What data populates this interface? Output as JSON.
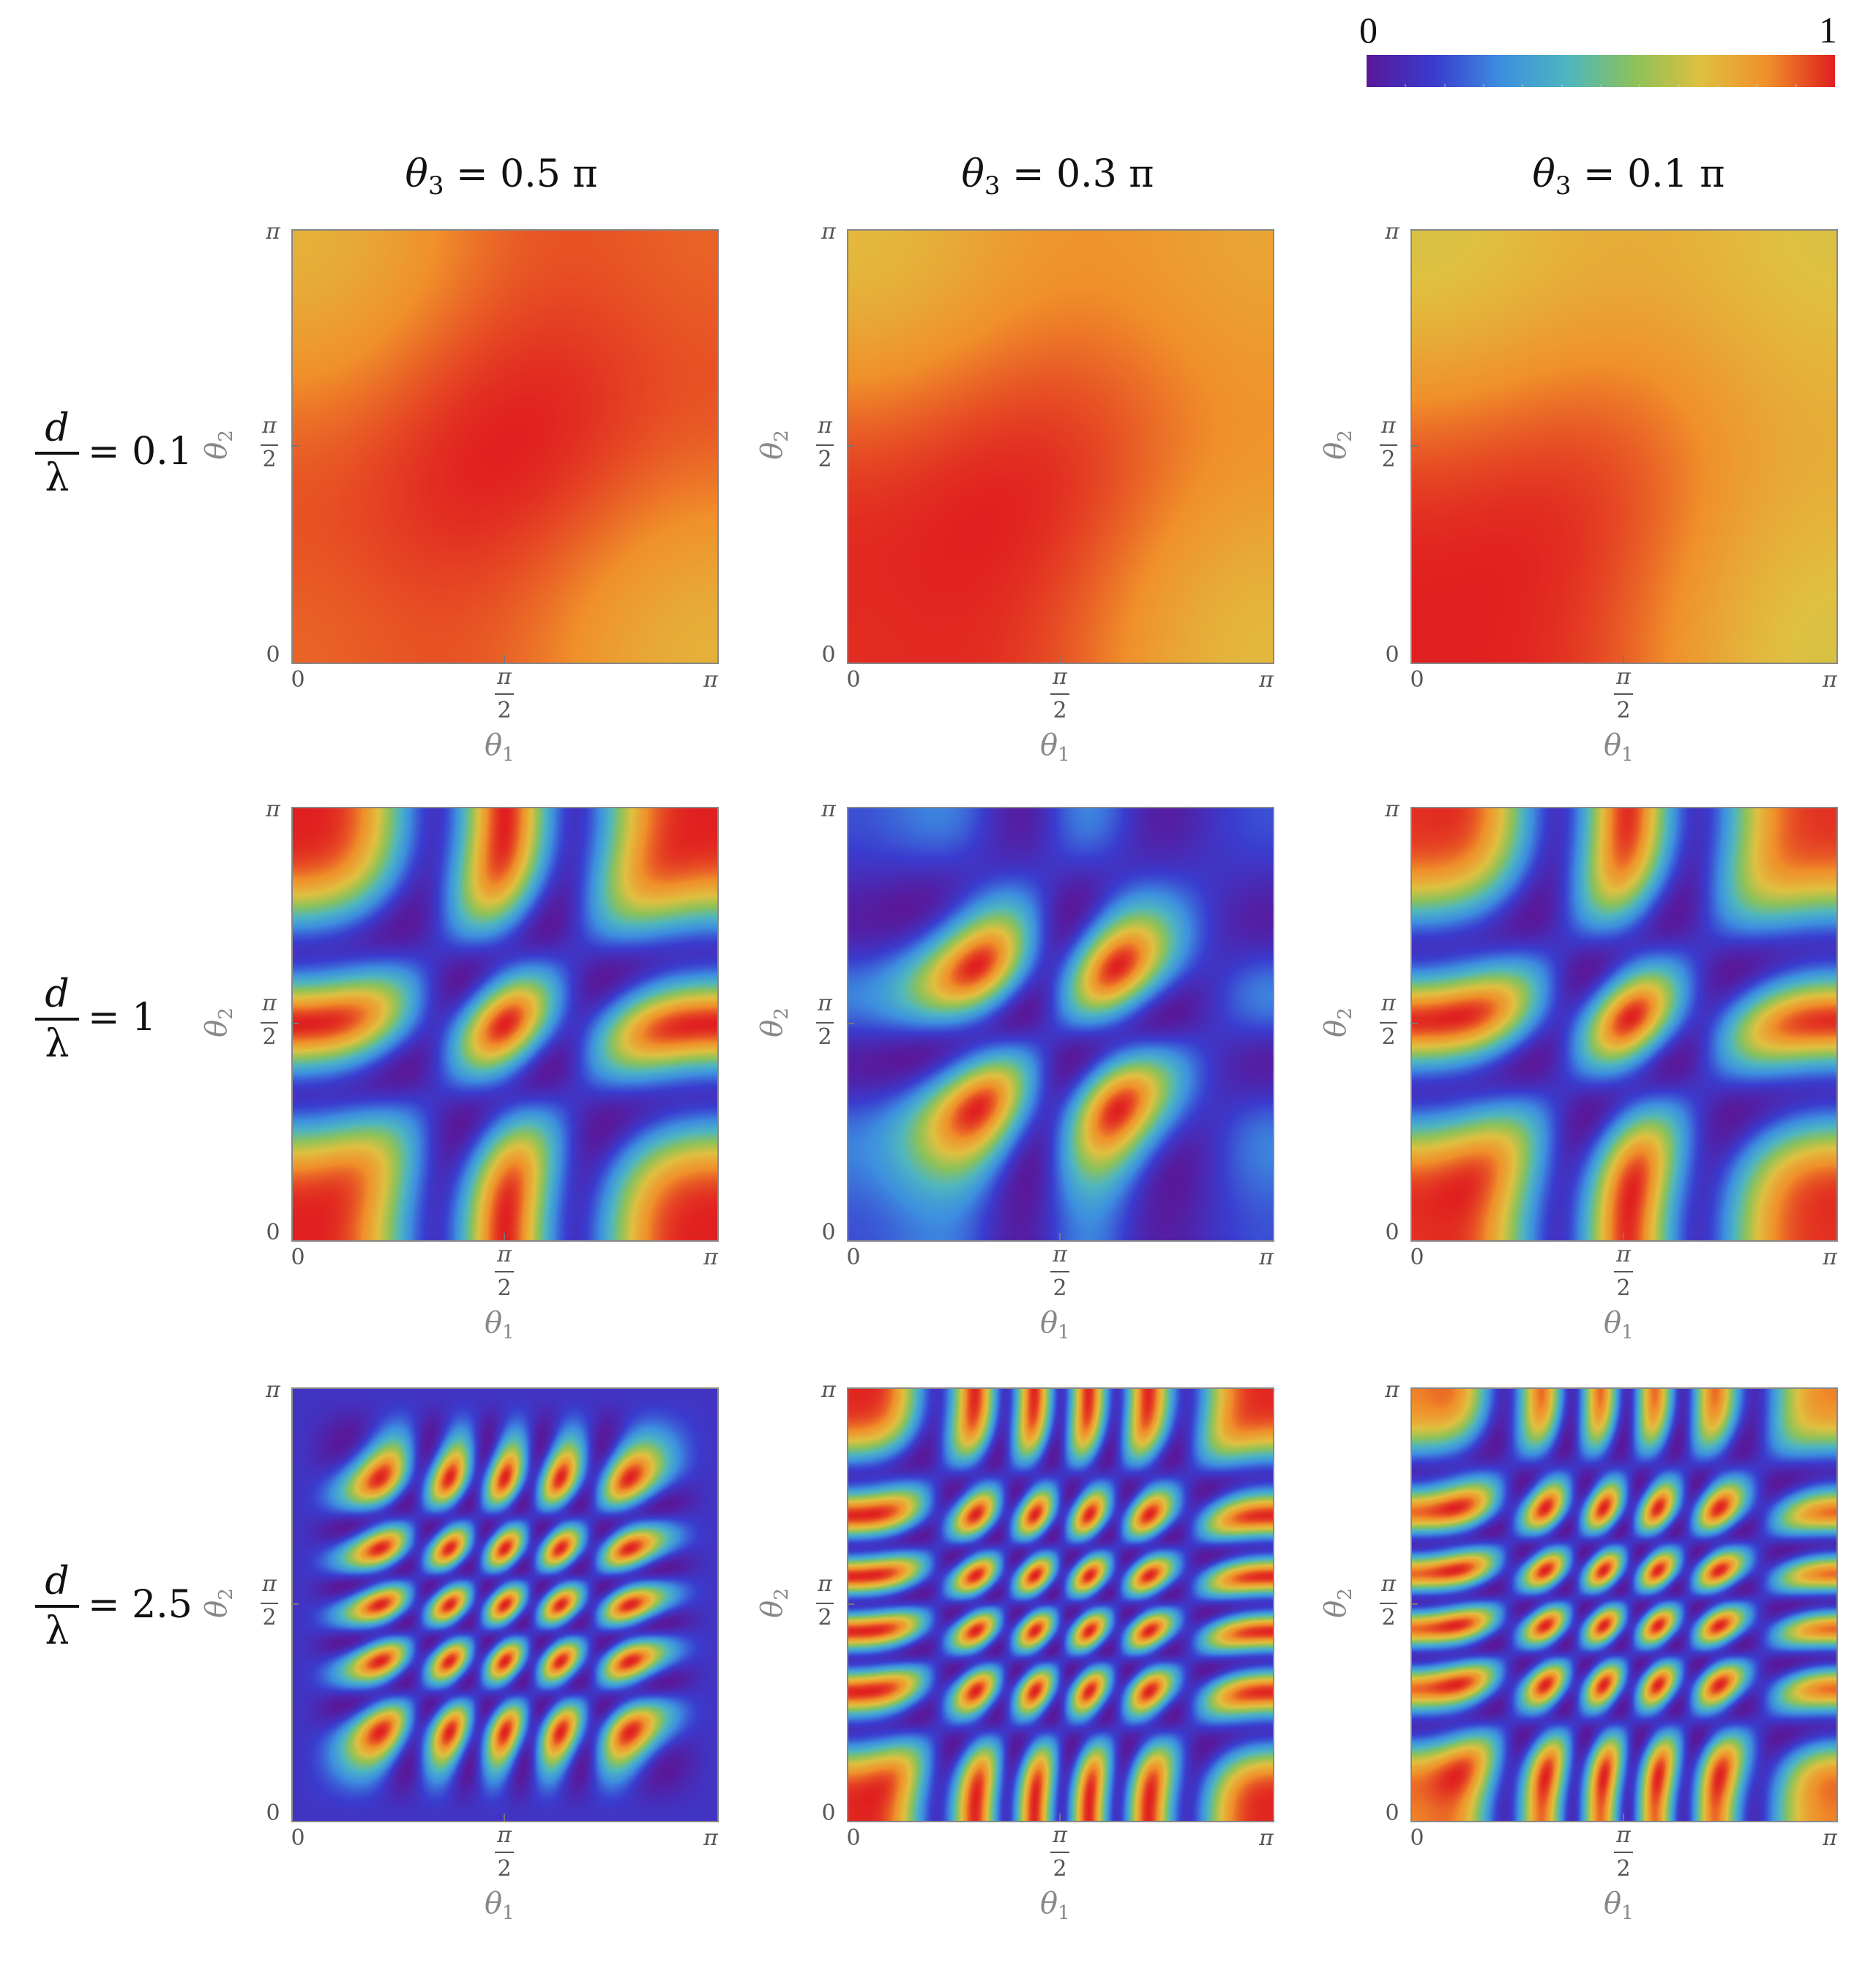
{
  "colorbar": {
    "min_label": "0",
    "max_label": "1",
    "colors": [
      "#5a189a",
      "#3a3ccf",
      "#3d8fe0",
      "#4fb6c0",
      "#8cc25a",
      "#e0c040",
      "#f0902a",
      "#e02020"
    ]
  },
  "columns": [
    {
      "symbol": "θ",
      "sub": "3",
      "rest": " = 0.5 π"
    },
    {
      "symbol": "θ",
      "sub": "3",
      "rest": " = 0.3 π"
    },
    {
      "symbol": "θ",
      "sub": "3",
      "rest": " = 0.1 π"
    }
  ],
  "rows": [
    {
      "num": "d",
      "den": "λ",
      "eq": "= 0.1"
    },
    {
      "num": "d",
      "den": "λ",
      "eq": "= 1"
    },
    {
      "num": "d",
      "den": "λ",
      "eq": "= 2.5"
    }
  ],
  "axes": {
    "x_name": "θ",
    "x_sub": "1",
    "y_name": "θ",
    "y_sub": "2",
    "tick_zero": "0",
    "tick_pi": "π",
    "tick_half_num": "π",
    "tick_half_den": "2"
  },
  "chart_data": {
    "type": "heatmap",
    "x_range": [
      0,
      3.14159
    ],
    "y_range": [
      0,
      3.14159
    ],
    "value_range": [
      0,
      1
    ],
    "d_over_lambda": [
      0.1,
      1,
      2.5
    ],
    "theta3_over_pi": [
      0.5,
      0.3,
      0.1
    ]
  }
}
